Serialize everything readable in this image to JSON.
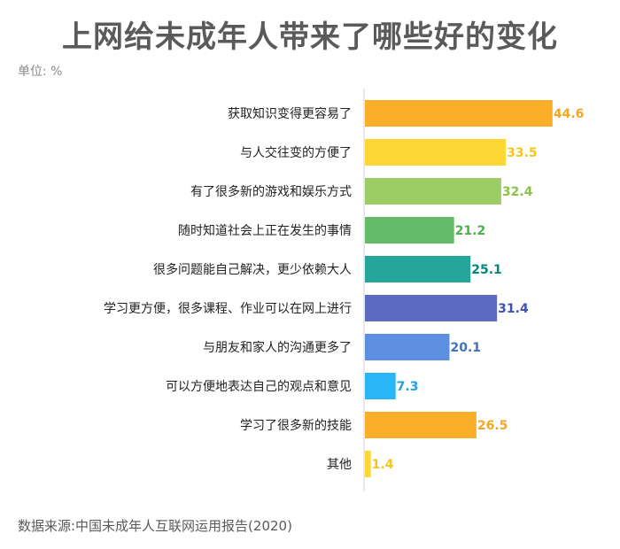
{
  "title": "上网给未成年人带来了哪些好的变化",
  "unit_label": "单位: %",
  "source": "数据来源:中国未成年人互联网运用报告(2020)",
  "chart_data": {
    "type": "bar",
    "orientation": "horizontal",
    "title": "上网给未成年人带来了哪些好的变化",
    "categories": [
      "获取知识变得更容易了",
      "与人交往变的方便了",
      "有了很多新的游戏和娱乐方式",
      "随时知道社会上正在发生的事情",
      "很多问题能自己解决，更少依赖大人",
      "学习更方便，很多课程、作业可以在网上进行",
      "与朋友和家人的沟通更多了",
      "可以方便地表达自己的观点和意见",
      "学习了很多新的技能",
      "其他"
    ],
    "values": [
      44.6,
      33.5,
      32.4,
      21.2,
      25.1,
      31.4,
      20.1,
      7.3,
      26.5,
      1.4
    ],
    "value_labels": [
      "44.6",
      "33.5",
      "32.4",
      "21.2",
      "25.1",
      "31.4",
      "20.1",
      "7.3",
      "26.5",
      "1.4"
    ],
    "bar_colors": [
      "#FBAE28",
      "#FDD835",
      "#9CCC65",
      "#66BB6A",
      "#26A69A",
      "#5C6BC0",
      "#5C8FE0",
      "#29B6F6",
      "#FBAE28",
      "#FDD835"
    ],
    "label_colors": [
      "#F5A623",
      "#F5C518",
      "#8BC34A",
      "#4CAF50",
      "#00897B",
      "#3F51B5",
      "#3F72C6",
      "#1E9FE0",
      "#F5A623",
      "#F5C518"
    ],
    "xlim": [
      0,
      50
    ],
    "grid": false,
    "legend": "none"
  }
}
